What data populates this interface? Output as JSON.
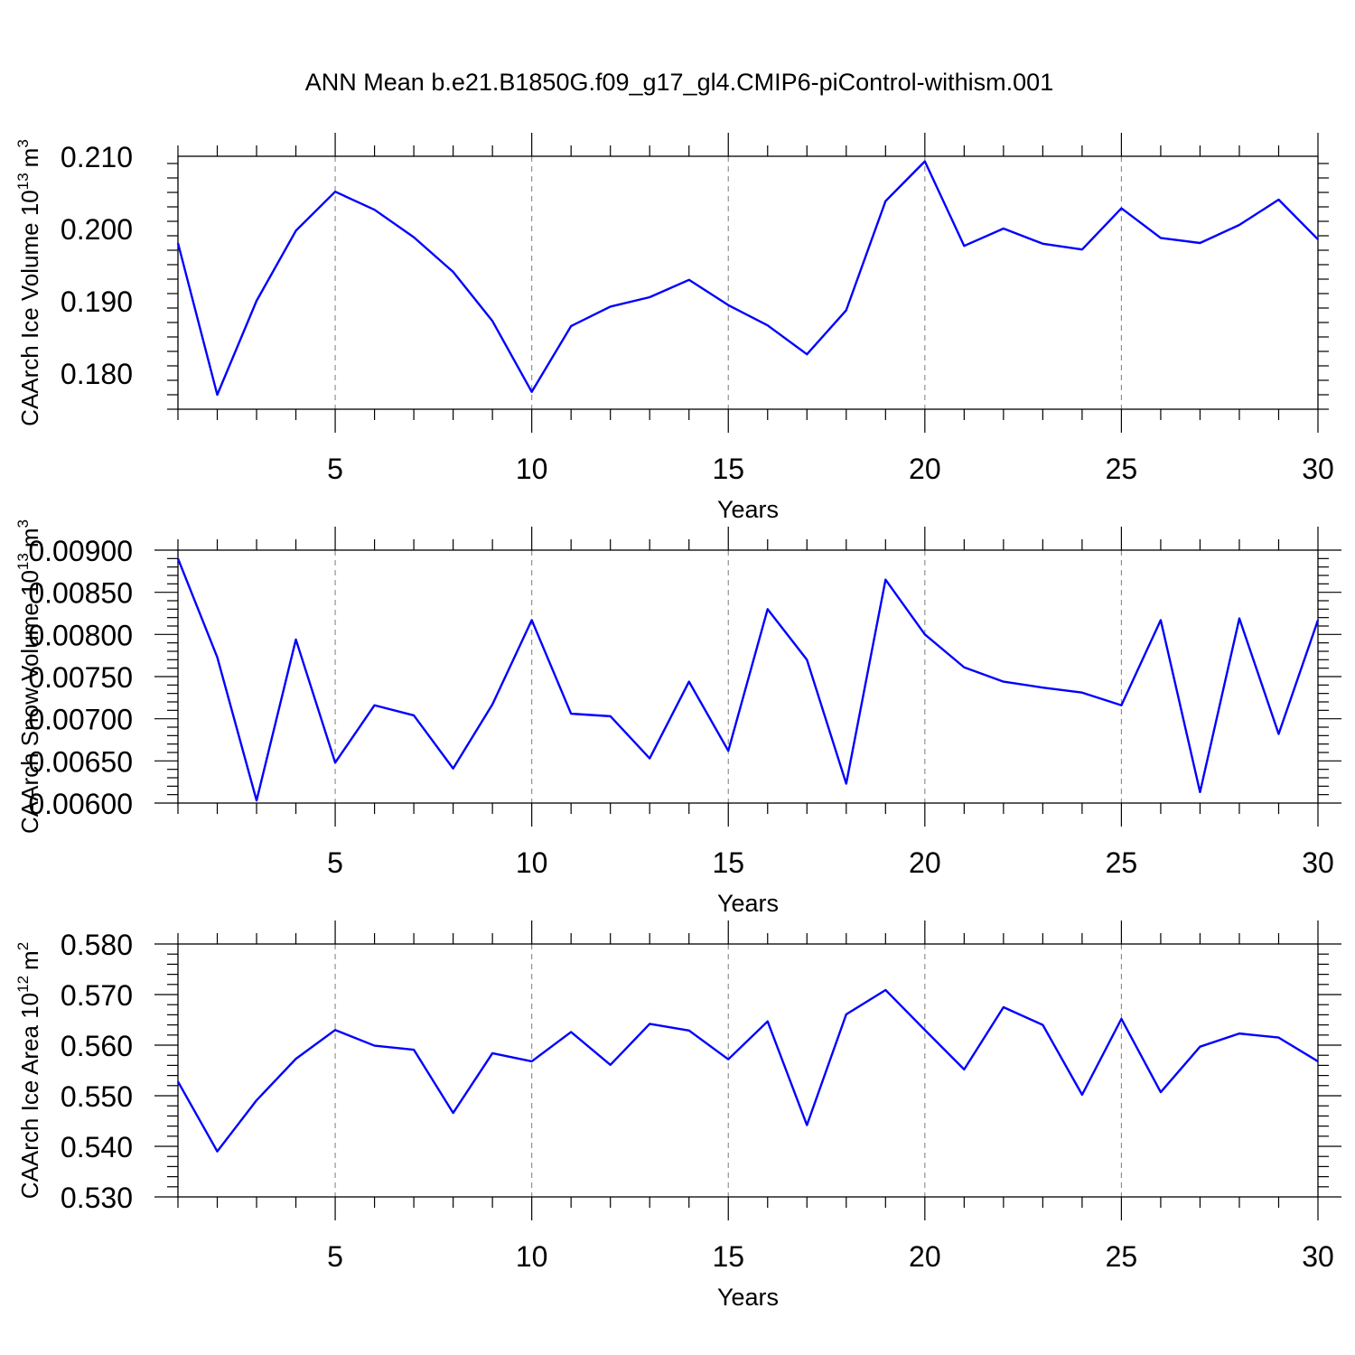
{
  "title": "ANN Mean b.e21.B1850G.f09_g17_gl4.CMIP6-piControl-withism.001",
  "colors": {
    "line": "#0000ff",
    "grid": "#888888"
  },
  "chart_data": [
    {
      "type": "line",
      "xlabel": "Years",
      "ylabel": "CAArch Ice Volume 10",
      "ylabel_exponent": "13",
      "ylabel_unit": "m",
      "ylabel_unit_exponent": "3",
      "xlim": [
        1,
        30
      ],
      "ylim": [
        0.175,
        0.21
      ],
      "xticks": [
        5,
        10,
        15,
        20,
        25,
        30
      ],
      "yticks": [
        0.18,
        0.19,
        0.2,
        0.21
      ],
      "ytick_labels": [
        "0.180",
        "0.190",
        "0.200",
        "0.210"
      ],
      "grid": "x-dashed",
      "x": [
        1,
        2,
        3,
        4,
        5,
        6,
        7,
        8,
        9,
        10,
        11,
        12,
        13,
        14,
        15,
        16,
        17,
        18,
        19,
        20,
        21,
        22,
        23,
        24,
        25,
        26,
        27,
        28,
        29,
        30
      ],
      "series": [
        {
          "values": [
            0.198,
            0.177,
            0.19,
            0.1997,
            0.2051,
            0.2026,
            0.1988,
            0.194,
            0.1872,
            0.1774,
            0.1865,
            0.1892,
            0.1905,
            0.1929,
            0.1894,
            0.1866,
            0.1826,
            0.1887,
            0.2038,
            0.2093,
            0.1976,
            0.2,
            0.1979,
            0.1971,
            0.2028,
            0.1987,
            0.198,
            0.2005,
            0.204,
            0.1985
          ]
        }
      ]
    },
    {
      "type": "line",
      "xlabel": "Years",
      "ylabel": "CAArch Snow Volume 10",
      "ylabel_exponent": "13",
      "ylabel_unit": "m",
      "ylabel_unit_exponent": "3",
      "xlim": [
        1,
        30
      ],
      "ylim": [
        0.006,
        0.009
      ],
      "xticks": [
        5,
        10,
        15,
        20,
        25,
        30
      ],
      "yticks": [
        0.006,
        0.0065,
        0.007,
        0.0075,
        0.008,
        0.0085,
        0.009
      ],
      "ytick_labels": [
        "0.00600",
        "0.00650",
        "0.00700",
        "0.00750",
        "0.00800",
        "0.00850",
        "0.00900"
      ],
      "grid": "x-dashed",
      "x": [
        1,
        2,
        3,
        4,
        5,
        6,
        7,
        8,
        9,
        10,
        11,
        12,
        13,
        14,
        15,
        16,
        17,
        18,
        19,
        20,
        21,
        22,
        23,
        24,
        25,
        26,
        27,
        28,
        29,
        30
      ],
      "series": [
        {
          "values": [
            0.0089,
            0.00773,
            0.00603,
            0.00794,
            0.00648,
            0.00716,
            0.00704,
            0.00641,
            0.00717,
            0.00817,
            0.00706,
            0.00703,
            0.00653,
            0.00744,
            0.00662,
            0.0083,
            0.0077,
            0.00623,
            0.00865,
            0.008,
            0.00761,
            0.00744,
            0.00737,
            0.00731,
            0.00716,
            0.00817,
            0.00613,
            0.00819,
            0.00682,
            0.00817
          ]
        }
      ]
    },
    {
      "type": "line",
      "xlabel": "Years",
      "ylabel": "CAArch Ice Area 10",
      "ylabel_exponent": "12",
      "ylabel_unit": "m",
      "ylabel_unit_exponent": "2",
      "xlim": [
        1,
        30
      ],
      "ylim": [
        0.53,
        0.58
      ],
      "xticks": [
        5,
        10,
        15,
        20,
        25,
        30
      ],
      "yticks": [
        0.53,
        0.54,
        0.55,
        0.56,
        0.57,
        0.58
      ],
      "ytick_labels": [
        "0.530",
        "0.540",
        "0.550",
        "0.560",
        "0.570",
        "0.580"
      ],
      "grid": "x-dashed",
      "x": [
        1,
        2,
        3,
        4,
        5,
        6,
        7,
        8,
        9,
        10,
        11,
        12,
        13,
        14,
        15,
        16,
        17,
        18,
        19,
        20,
        21,
        22,
        23,
        24,
        25,
        26,
        27,
        28,
        29,
        30
      ],
      "series": [
        {
          "values": [
            0.5528,
            0.539,
            0.5491,
            0.5573,
            0.563,
            0.5599,
            0.5591,
            0.5466,
            0.5584,
            0.5568,
            0.5626,
            0.5561,
            0.5642,
            0.5629,
            0.5572,
            0.5647,
            0.5442,
            0.5661,
            0.5709,
            0.563,
            0.5552,
            0.5675,
            0.564,
            0.5502,
            0.5652,
            0.5507,
            0.5597,
            0.5623,
            0.5615,
            0.5568
          ]
        }
      ]
    }
  ]
}
